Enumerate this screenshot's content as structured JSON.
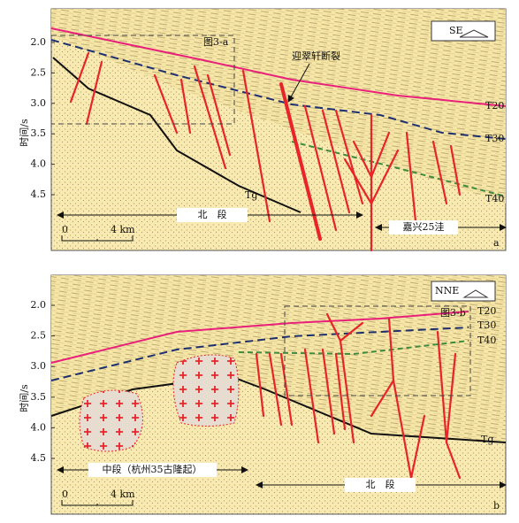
{
  "panels": [
    {
      "axis_title": "时间/s",
      "yticks": [
        "2.0",
        "2.5",
        "3.0",
        "3.5",
        "4.0",
        "4.5"
      ],
      "direction": "SE",
      "box_label": "图3-a",
      "fault_label": "迎翠轩断裂",
      "horizons": [
        "T20",
        "T30",
        "T40",
        "Tg"
      ],
      "segments": [
        "北　段",
        "嘉兴25洼"
      ],
      "scale": [
        "0",
        "4 km"
      ],
      "panel_label": "a"
    },
    {
      "axis_title": "时间/s",
      "yticks": [
        "2.0",
        "2.5",
        "3.0",
        "3.5",
        "4.0",
        "4.5"
      ],
      "direction": "NNE",
      "box_label": "图3-b",
      "horizons": [
        "T20",
        "T30",
        "T40",
        "Tg"
      ],
      "segments": [
        "中段（杭州35古隆起）",
        "北　段"
      ],
      "scale": [
        "0",
        "4 km"
      ],
      "panel_label": "b"
    }
  ]
}
